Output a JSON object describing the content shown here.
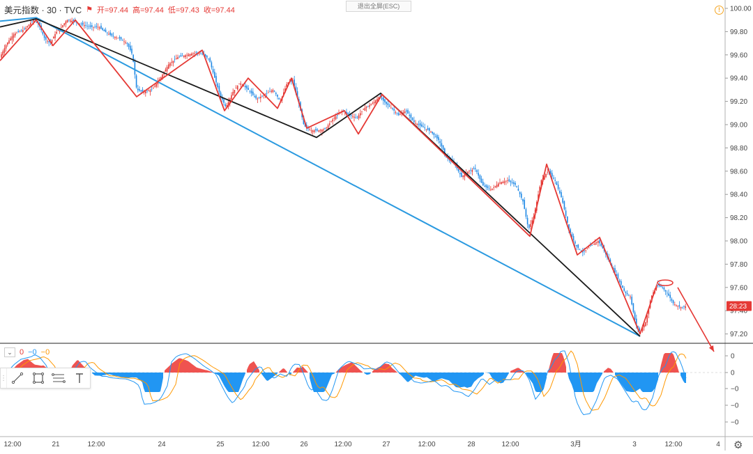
{
  "header": {
    "symbol": "美元指数 · 30 · TVC",
    "open": "开=97.44",
    "high": "高=97.44",
    "low": "低=97.43",
    "close": "收=97.44",
    "exit_fullscreen": "退出全屏(ESC)"
  },
  "indicator": {
    "values": [
      "0",
      "−0",
      "−0"
    ],
    "colors": [
      "#e53935",
      "#2196f3",
      "#ff9800"
    ]
  },
  "price_tag": "28:23",
  "chart_data": {
    "type": "candlestick",
    "y_ticks": [
      "100.00",
      "99.80",
      "99.60",
      "99.40",
      "99.20",
      "99.00",
      "98.80",
      "98.60",
      "98.40",
      "98.20",
      "98.00",
      "97.80",
      "97.60",
      "97.40",
      "97.20"
    ],
    "x_ticks": [
      "12:00",
      "21",
      "12:00",
      "24",
      "25",
      "12:00",
      "26",
      "12:00",
      "27",
      "12:00",
      "28",
      "12:00",
      "3月",
      "3",
      "12:00",
      "4"
    ],
    "ylim": [
      97.12,
      100.05
    ],
    "macd_ticks": [
      "0",
      "0",
      "−0",
      "−0",
      "−0"
    ],
    "colors": {
      "up": "#e53935",
      "down": "#1e88e5",
      "zigzag": "#e53935",
      "trend": "#1a1a1a",
      "channel": "#2b9ae0"
    },
    "price_path": [
      [
        0,
        99.58
      ],
      [
        10,
        99.7
      ],
      [
        20,
        99.78
      ],
      [
        35,
        99.82
      ],
      [
        48,
        99.9
      ],
      [
        56,
        99.86
      ],
      [
        64,
        99.74
      ],
      [
        72,
        99.7
      ],
      [
        80,
        99.79
      ],
      [
        88,
        99.84
      ],
      [
        96,
        99.9
      ],
      [
        106,
        99.89
      ],
      [
        118,
        99.86
      ],
      [
        130,
        99.84
      ],
      [
        142,
        99.84
      ],
      [
        150,
        99.8
      ],
      [
        162,
        99.76
      ],
      [
        172,
        99.74
      ],
      [
        182,
        99.7
      ],
      [
        190,
        99.6
      ],
      [
        196,
        99.3
      ],
      [
        206,
        99.28
      ],
      [
        218,
        99.3
      ],
      [
        230,
        99.4
      ],
      [
        242,
        99.52
      ],
      [
        255,
        99.58
      ],
      [
        268,
        99.6
      ],
      [
        282,
        99.62
      ],
      [
        292,
        99.6
      ],
      [
        300,
        99.56
      ],
      [
        308,
        99.4
      ],
      [
        316,
        99.25
      ],
      [
        324,
        99.15
      ],
      [
        334,
        99.28
      ],
      [
        344,
        99.36
      ],
      [
        356,
        99.3
      ],
      [
        368,
        99.22
      ],
      [
        380,
        99.26
      ],
      [
        392,
        99.3
      ],
      [
        402,
        99.2
      ],
      [
        412,
        99.36
      ],
      [
        420,
        99.38
      ],
      [
        428,
        99.2
      ],
      [
        436,
        98.99
      ],
      [
        446,
        98.95
      ],
      [
        456,
        98.95
      ],
      [
        466,
        98.96
      ],
      [
        478,
        99.05
      ],
      [
        490,
        99.12
      ],
      [
        502,
        99.08
      ],
      [
        512,
        99.06
      ],
      [
        522,
        99.14
      ],
      [
        534,
        99.18
      ],
      [
        544,
        99.24
      ],
      [
        554,
        99.18
      ],
      [
        562,
        99.14
      ],
      [
        572,
        99.08
      ],
      [
        582,
        99.12
      ],
      [
        594,
        99.02
      ],
      [
        606,
        98.98
      ],
      [
        618,
        98.94
      ],
      [
        630,
        98.86
      ],
      [
        640,
        98.72
      ],
      [
        652,
        98.66
      ],
      [
        662,
        98.55
      ],
      [
        672,
        98.6
      ],
      [
        682,
        98.62
      ],
      [
        692,
        98.48
      ],
      [
        704,
        98.44
      ],
      [
        716,
        98.5
      ],
      [
        728,
        98.52
      ],
      [
        740,
        98.48
      ],
      [
        750,
        98.34
      ],
      [
        758,
        98.1
      ],
      [
        766,
        98.22
      ],
      [
        776,
        98.52
      ],
      [
        786,
        98.6
      ],
      [
        796,
        98.52
      ],
      [
        806,
        98.36
      ],
      [
        816,
        98.1
      ],
      [
        826,
        97.96
      ],
      [
        836,
        97.9
      ],
      [
        848,
        97.96
      ],
      [
        858,
        98.0
      ],
      [
        866,
        97.92
      ],
      [
        876,
        97.8
      ],
      [
        886,
        97.68
      ],
      [
        896,
        97.56
      ],
      [
        904,
        97.52
      ],
      [
        912,
        97.28
      ],
      [
        918,
        97.22
      ],
      [
        926,
        97.3
      ],
      [
        934,
        97.52
      ],
      [
        942,
        97.62
      ],
      [
        950,
        97.6
      ],
      [
        958,
        97.54
      ],
      [
        966,
        97.46
      ],
      [
        976,
        97.43
      ],
      [
        985,
        97.44
      ]
    ],
    "red_zigzag": [
      [
        0,
        99.55
      ],
      [
        52,
        99.9
      ],
      [
        76,
        99.68
      ],
      [
        108,
        99.9
      ],
      [
        196,
        99.24
      ],
      [
        290,
        99.64
      ],
      [
        322,
        99.12
      ],
      [
        356,
        99.4
      ],
      [
        398,
        99.14
      ],
      [
        418,
        99.4
      ],
      [
        440,
        98.97
      ],
      [
        494,
        99.12
      ],
      [
        514,
        98.92
      ],
      [
        548,
        99.26
      ],
      [
        760,
        98.04
      ],
      [
        784,
        98.66
      ],
      [
        828,
        97.88
      ],
      [
        860,
        98.03
      ],
      [
        918,
        97.2
      ],
      [
        942,
        97.62
      ]
    ],
    "black_lines": [
      [
        [
          0,
          99.84
        ],
        [
          52,
          99.91
        ],
        [
          454,
          98.89
        ],
        [
          546,
          99.27
        ],
        [
          918,
          97.18
        ]
      ]
    ],
    "blue_lines": [
      [
        [
          0,
          99.89
        ],
        [
          52,
          99.92
        ],
        [
          918,
          97.18
        ]
      ]
    ],
    "arrow": {
      "from": [
        972,
        97.6
      ],
      "to": [
        1024,
        97.0
      ]
    },
    "ellipse_marker": {
      "x": 954,
      "y": 97.64
    }
  }
}
